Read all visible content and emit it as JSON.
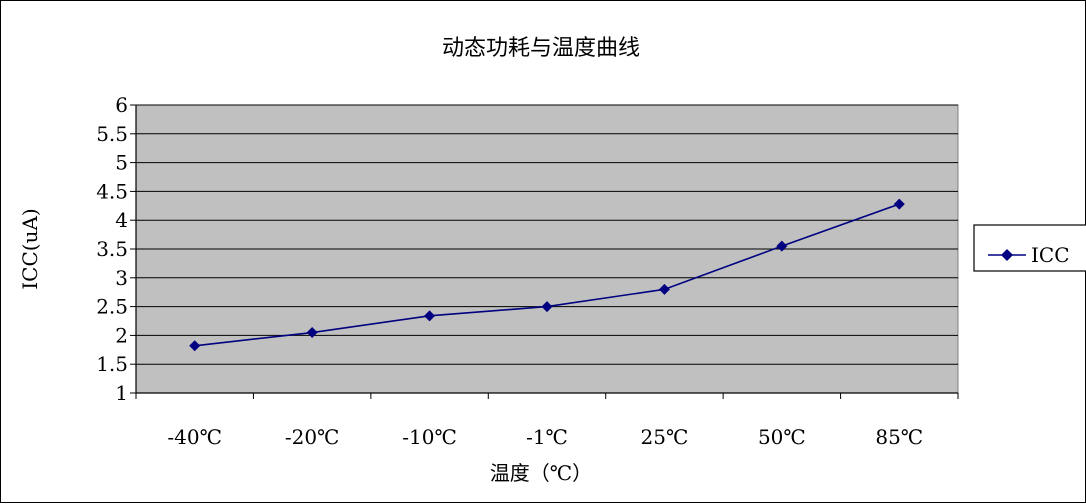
{
  "chart_data": {
    "type": "line",
    "title": "动态功耗与温度曲线",
    "xlabel": "温度（℃）",
    "ylabel": "ICC(uA)",
    "categories": [
      "-40℃",
      "-20℃",
      "-10℃",
      "-1℃",
      "25℃",
      "50℃",
      "85℃"
    ],
    "series": [
      {
        "name": "ICC",
        "values": [
          1.82,
          2.05,
          2.34,
          2.5,
          2.8,
          3.55,
          4.28
        ]
      }
    ],
    "ylim": [
      1,
      6
    ],
    "yticks": [
      "1",
      "1.5",
      "2",
      "2.5",
      "3",
      "3.5",
      "4",
      "4.5",
      "5",
      "5.5",
      "6"
    ],
    "grid": true,
    "legend_position": "right",
    "colors": {
      "plot_background": "#c0c0c0",
      "series_line": "#000080",
      "grid": "#000000"
    }
  }
}
